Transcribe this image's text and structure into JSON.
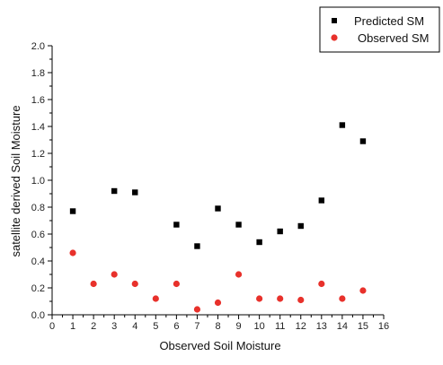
{
  "chart_data": {
    "type": "scatter",
    "title": "",
    "xlabel": "Observed Soil Moisture",
    "ylabel": "satellite derived Soil Moisture",
    "xlim": [
      0,
      16
    ],
    "ylim": [
      0,
      2.0
    ],
    "x_ticks": [
      "0",
      "1",
      "2",
      "3",
      "4",
      "5",
      "6",
      "7",
      "8",
      "9",
      "10",
      "11",
      "12",
      "13",
      "14",
      "15",
      "16"
    ],
    "y_ticks": [
      "0.0",
      "0.2",
      "0.4",
      "0.6",
      "0.8",
      "1.0",
      "1.2",
      "1.4",
      "1.6",
      "1.8",
      "2.0"
    ],
    "grid": false,
    "legend_position": "top-right",
    "series": [
      {
        "name": "Predicted SM",
        "marker": "square",
        "color": "#000000",
        "x": [
          1,
          3,
          4,
          6,
          7,
          8,
          9,
          10,
          11,
          12,
          13,
          14,
          15
        ],
        "y": [
          0.77,
          0.92,
          0.91,
          0.67,
          0.51,
          0.79,
          0.67,
          0.54,
          0.62,
          0.66,
          0.85,
          1.41,
          1.29
        ]
      },
      {
        "name": "Observed SM",
        "marker": "circle",
        "color": "#e8312b",
        "x": [
          1,
          2,
          3,
          4,
          5,
          6,
          7,
          8,
          9,
          10,
          11,
          12,
          13,
          14,
          15
        ],
        "y": [
          0.46,
          0.23,
          0.3,
          0.23,
          0.12,
          0.23,
          0.04,
          0.09,
          0.3,
          0.12,
          0.12,
          0.11,
          0.23,
          0.12,
          0.18
        ]
      }
    ]
  }
}
